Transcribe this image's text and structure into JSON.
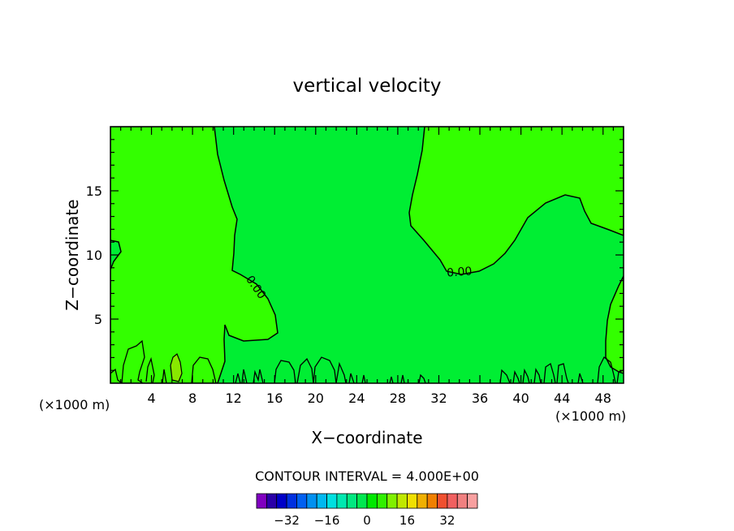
{
  "chart_data": {
    "type": "contour",
    "title": "vertical velocity",
    "xlabel": "X−coordinate",
    "ylabel": "Z−coordinate",
    "x_unit_left": "(×1000 m)",
    "x_unit_right": "(×1000 m)",
    "xlim": [
      0,
      50
    ],
    "ylim": [
      0,
      20
    ],
    "x_ticks": [
      4,
      8,
      12,
      16,
      20,
      24,
      28,
      32,
      36,
      40,
      44,
      48
    ],
    "x_tick_labels": [
      "4",
      "8",
      "12",
      "16",
      "20",
      "24",
      "28",
      "32",
      "36",
      "40",
      "44",
      "48"
    ],
    "y_ticks": [
      5,
      10,
      15
    ],
    "y_tick_labels": [
      "5",
      "10",
      "15"
    ],
    "contour_labels": [
      {
        "text": "0.00",
        "x": 14.2,
        "y": 7.5,
        "rotate": 55
      },
      {
        "text": "0.00",
        "x": 34.0,
        "y": 8.7,
        "rotate": -4
      }
    ],
    "contour_interval_text": "CONTOUR INTERVAL = 4.000E+00",
    "colorbar": {
      "colors": [
        "#8000c0",
        "#2a00a8",
        "#0000c8",
        "#0030e0",
        "#0060f0",
        "#0090f0",
        "#00b8f0",
        "#00e0e0",
        "#00e8b0",
        "#00e880",
        "#00e850",
        "#00e800",
        "#30f000",
        "#80f000",
        "#c0e800",
        "#f0e000",
        "#f0b000",
        "#f08000",
        "#f05030",
        "#f06060",
        "#f08080",
        "#f8a0a0"
      ],
      "tick_labels": [
        "−32",
        "−16",
        "0",
        "16",
        "32"
      ],
      "tick_values": [
        -32,
        -16,
        0,
        16,
        32
      ]
    },
    "fill_colors": {
      "positive": "#33ff00",
      "near_zero": "#00ee33",
      "small_positive": "#88e800"
    }
  }
}
